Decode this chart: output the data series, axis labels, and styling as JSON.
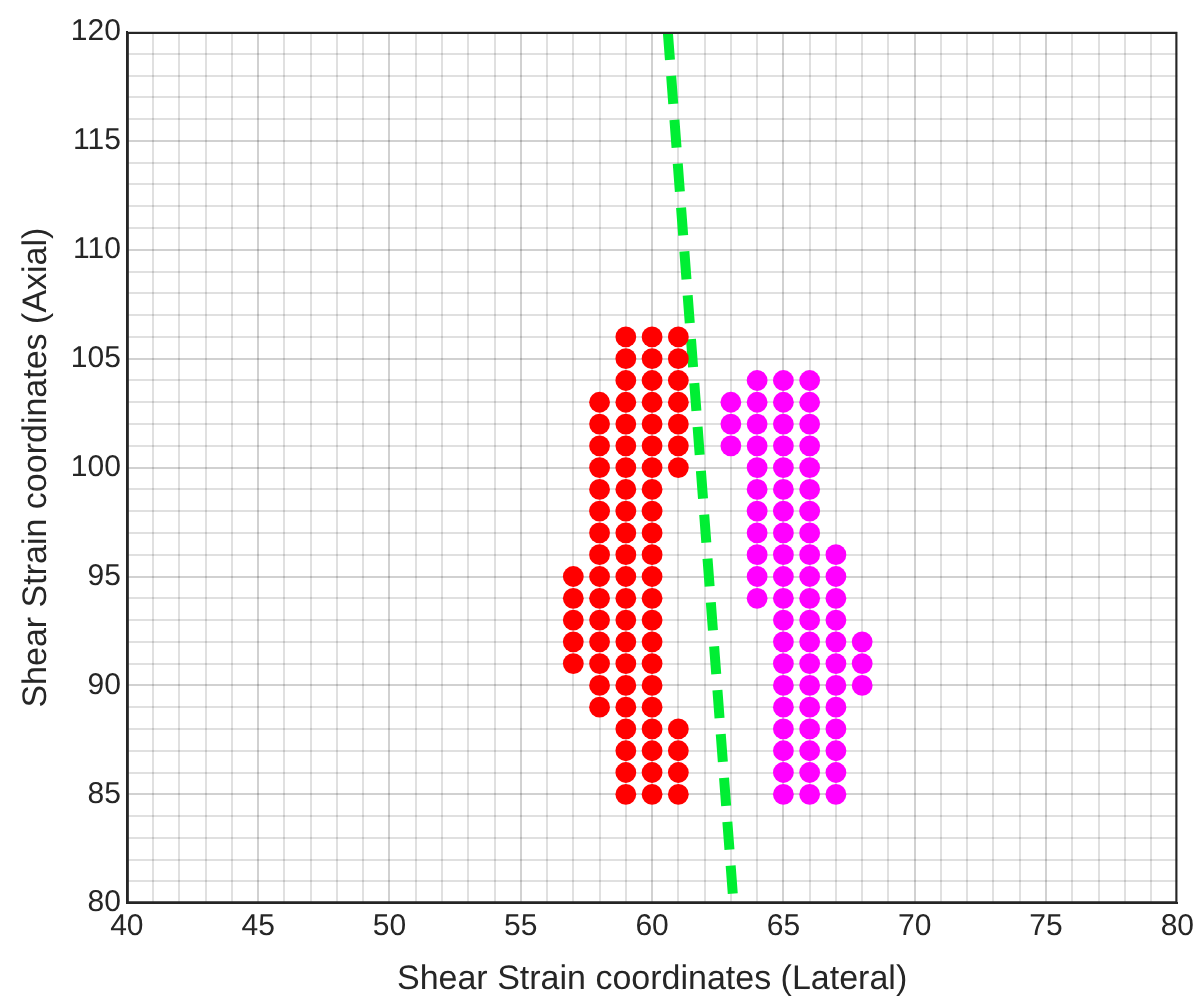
{
  "chart_data": {
    "type": "scatter",
    "xlabel": "Shear Strain coordinates (Lateral)",
    "ylabel": "Shear Strain coordinates (Axial)",
    "xlim": [
      40,
      80
    ],
    "ylim": [
      80,
      120
    ],
    "xticks": [
      40,
      {
        "value": 41,
        "label": null
      },
      {
        "value": 42,
        "label": null
      },
      {
        "value": 43,
        "label": null
      },
      {
        "value": 44,
        "label": null
      },
      45,
      {
        "value": 46,
        "label": null
      },
      {
        "value": 47,
        "label": null
      },
      {
        "value": 48,
        "label": null
      },
      {
        "value": 49,
        "label": null
      },
      50,
      {
        "value": 51,
        "label": null
      },
      {
        "value": 52,
        "label": null
      },
      {
        "value": 53,
        "label": null
      },
      {
        "value": 54,
        "label": null
      },
      55,
      {
        "value": 56,
        "label": null
      },
      {
        "value": 57,
        "label": null
      },
      {
        "value": 58,
        "label": null
      },
      {
        "value": 59,
        "label": null
      },
      60,
      {
        "value": 61,
        "label": null
      },
      {
        "value": 62,
        "label": null
      },
      {
        "value": 63,
        "label": null
      },
      {
        "value": 64,
        "label": null
      },
      65,
      {
        "value": 66,
        "label": null
      },
      {
        "value": 67,
        "label": null
      },
      {
        "value": 68,
        "label": null
      },
      {
        "value": 69,
        "label": null
      },
      70,
      {
        "value": 71,
        "label": null
      },
      {
        "value": 72,
        "label": null
      },
      {
        "value": 73,
        "label": null
      },
      {
        "value": 74,
        "label": null
      },
      75,
      {
        "value": 76,
        "label": null
      },
      {
        "value": 77,
        "label": null
      },
      {
        "value": 78,
        "label": null
      },
      {
        "value": 79,
        "label": null
      },
      80
    ],
    "yticks": [
      80,
      {
        "value": 81,
        "label": null
      },
      {
        "value": 82,
        "label": null
      },
      {
        "value": 83,
        "label": null
      },
      {
        "value": 84,
        "label": null
      },
      85,
      {
        "value": 86,
        "label": null
      },
      {
        "value": 87,
        "label": null
      },
      {
        "value": 88,
        "label": null
      },
      {
        "value": 89,
        "label": null
      },
      90,
      {
        "value": 91,
        "label": null
      },
      {
        "value": 92,
        "label": null
      },
      {
        "value": 93,
        "label": null
      },
      {
        "value": 94,
        "label": null
      },
      95,
      {
        "value": 96,
        "label": null
      },
      {
        "value": 97,
        "label": null
      },
      {
        "value": 98,
        "label": null
      },
      {
        "value": 99,
        "label": null
      },
      100,
      {
        "value": 101,
        "label": null
      },
      {
        "value": 102,
        "label": null
      },
      {
        "value": 103,
        "label": null
      },
      {
        "value": 104,
        "label": null
      },
      105,
      {
        "value": 106,
        "label": null
      },
      {
        "value": 107,
        "label": null
      },
      {
        "value": 108,
        "label": null
      },
      {
        "value": 109,
        "label": null
      },
      110,
      {
        "value": 111,
        "label": null
      },
      {
        "value": 112,
        "label": null
      },
      {
        "value": 113,
        "label": null
      },
      {
        "value": 114,
        "label": null
      },
      115,
      {
        "value": 116,
        "label": null
      },
      {
        "value": 117,
        "label": null
      },
      {
        "value": 118,
        "label": null
      },
      {
        "value": 119,
        "label": null
      },
      120
    ],
    "grid": true,
    "legend": false,
    "marker": "circle",
    "series": [
      {
        "color": "#ff0000",
        "x": [
          57,
          57,
          57,
          57,
          57,
          58,
          58,
          58,
          58,
          58,
          58,
          58,
          58,
          58,
          58,
          58,
          58,
          58,
          58,
          58,
          59,
          59,
          59,
          59,
          59,
          59,
          59,
          59,
          59,
          59,
          59,
          59,
          59,
          59,
          59,
          59,
          59,
          59,
          59,
          59,
          59,
          59,
          60,
          60,
          60,
          60,
          60,
          60,
          60,
          60,
          60,
          60,
          60,
          60,
          60,
          60,
          60,
          60,
          60,
          60,
          60,
          60,
          60,
          60,
          61,
          61,
          61,
          61,
          61,
          61,
          61,
          61,
          61,
          61,
          61
        ],
        "values": [
          91,
          92,
          93,
          94,
          95,
          89,
          90,
          91,
          92,
          93,
          94,
          95,
          96,
          97,
          98,
          99,
          100,
          101,
          102,
          103,
          85,
          86,
          87,
          88,
          89,
          90,
          91,
          92,
          93,
          94,
          95,
          96,
          97,
          98,
          99,
          100,
          101,
          102,
          103,
          104,
          105,
          106,
          85,
          86,
          87,
          88,
          89,
          90,
          91,
          92,
          93,
          94,
          95,
          96,
          97,
          98,
          99,
          100,
          101,
          102,
          103,
          104,
          105,
          106,
          85,
          86,
          87,
          88,
          100,
          101,
          102,
          103,
          104,
          105,
          106
        ]
      },
      {
        "color": "#ff00ff",
        "x": [
          63,
          63,
          63,
          64,
          64,
          64,
          64,
          64,
          64,
          64,
          64,
          64,
          64,
          64,
          65,
          65,
          65,
          65,
          65,
          65,
          65,
          65,
          65,
          65,
          65,
          65,
          65,
          65,
          65,
          65,
          65,
          65,
          65,
          65,
          66,
          66,
          66,
          66,
          66,
          66,
          66,
          66,
          66,
          66,
          66,
          66,
          66,
          66,
          66,
          66,
          66,
          66,
          66,
          66,
          67,
          67,
          67,
          67,
          67,
          67,
          67,
          67,
          67,
          67,
          67,
          67,
          68,
          68,
          68
        ],
        "values": [
          101,
          102,
          103,
          94,
          95,
          96,
          97,
          98,
          99,
          100,
          101,
          102,
          103,
          104,
          85,
          86,
          87,
          88,
          89,
          90,
          91,
          92,
          93,
          94,
          95,
          96,
          97,
          98,
          99,
          100,
          101,
          102,
          103,
          104,
          85,
          86,
          87,
          88,
          89,
          90,
          91,
          92,
          93,
          94,
          95,
          96,
          97,
          98,
          99,
          100,
          101,
          102,
          103,
          104,
          85,
          86,
          87,
          88,
          89,
          90,
          91,
          92,
          93,
          94,
          95,
          96,
          90,
          91,
          92
        ]
      },
      {
        "type": "line",
        "color": "#00ee33",
        "line_style": "dashed",
        "marker": "none",
        "x": [
          60.6,
          63.1
        ],
        "values": [
          120,
          80
        ]
      }
    ]
  }
}
